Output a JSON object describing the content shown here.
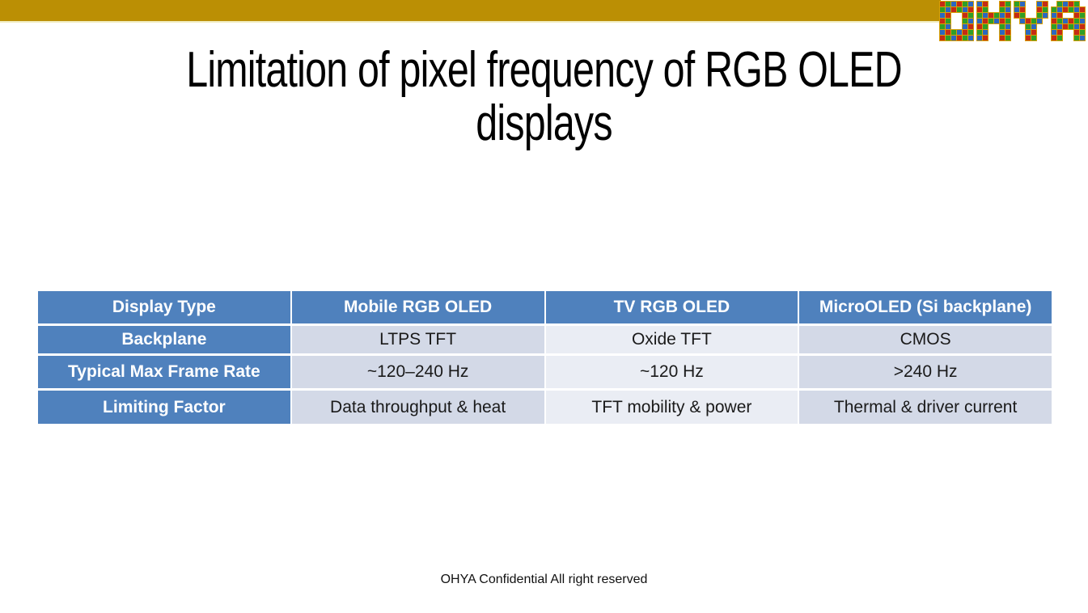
{
  "title_lines": [
    "Limitation of pixel frequency of RGB OLED",
    "displays"
  ],
  "logo": {
    "text": "OHYA"
  },
  "footer": "OHYA Confidential All right reserved",
  "colors": {
    "top_bar": "#BB8F04",
    "top_bar_underline": "#F1ECBF",
    "header_blue": "#4F81BD",
    "band_dark": "#D3D9E7",
    "band_light": "#EAEDF4",
    "logo_grout": "#D8A005",
    "logo_tiles": [
      "#C52B15",
      "#2E9E27",
      "#2B67C0"
    ]
  },
  "table": {
    "columns": [
      "Display Type",
      "Mobile RGB OLED",
      "TV RGB OLED",
      "MicroOLED (Si backplane)"
    ],
    "rows": [
      {
        "label": "Backplane",
        "values": [
          "LTPS TFT",
          "Oxide TFT",
          "CMOS"
        ]
      },
      {
        "label": "Typical Max Frame Rate",
        "values": [
          "~120–240 Hz",
          "~120 Hz",
          ">240 Hz"
        ]
      },
      {
        "label": "Limiting Factor",
        "values": [
          "Data throughput & heat",
          "TFT mobility & power",
          "Thermal & driver current"
        ]
      }
    ]
  }
}
